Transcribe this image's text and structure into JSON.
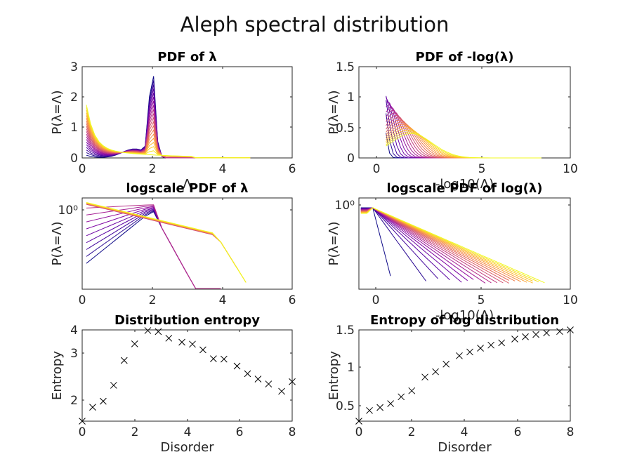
{
  "figure": {
    "title": "Aleph spectral distribution"
  },
  "chart_data": [
    {
      "id": "pdf_lambda",
      "type": "line",
      "title": "PDF of λ",
      "xlabel": "Λ",
      "ylabel": "P(λ=Λ)",
      "xlim": [
        0,
        6
      ],
      "ylim": [
        0,
        3
      ],
      "yscale": "linear",
      "xticks": [
        "0",
        "2",
        "4",
        "6"
      ],
      "yticks": [
        "0",
        "1",
        "2",
        "3"
      ],
      "colormap": "plasma",
      "n_series": 20
    },
    {
      "id": "pdf_neglog",
      "type": "line",
      "title": "PDF of -log(λ)",
      "xlabel": "-log10(Λ)",
      "ylabel": "P(λ=Λ)",
      "xlim": [
        -1.7,
        10
      ],
      "ylim": [
        0,
        1.5
      ],
      "yscale": "linear",
      "xticks": [
        "0",
        "5",
        "10"
      ],
      "yticks": [
        "0",
        "0.5",
        "1",
        "1.5"
      ],
      "colormap": "plasma",
      "n_series": 20
    },
    {
      "id": "logpdf_lambda",
      "type": "line",
      "title": "logscale PDF of λ",
      "xlabel": "",
      "ylabel": "P(λ=Λ)",
      "xlim": [
        0,
        6
      ],
      "yscale": "log",
      "xticks": [
        "0",
        "2",
        "4",
        "6"
      ],
      "yticks": [
        "10⁰"
      ],
      "colormap": "plasma",
      "n_series": 20
    },
    {
      "id": "logpdf_log",
      "type": "line",
      "title": "logscale PDF of log(λ)",
      "xlabel": "-log10(Λ)",
      "ylabel": "P(λ=Λ)",
      "xlim": [
        -0.7,
        10
      ],
      "yscale": "log",
      "xticks": [
        "0",
        "5",
        "10"
      ],
      "yticks": [
        "10⁰"
      ],
      "colormap": "plasma",
      "n_series": 20
    },
    {
      "id": "entropy",
      "type": "scatter",
      "marker": "x",
      "title": "Distribution entropy",
      "xlabel": "Disorder",
      "ylabel": "Entropy",
      "xlim": [
        0,
        8
      ],
      "ylim": [
        1.3,
        4.05
      ],
      "xticks": [
        "0",
        "2",
        "4",
        "6",
        "8"
      ],
      "yticks": [
        "2",
        "3",
        "4"
      ],
      "x": [
        0,
        0.4,
        0.8,
        1.2,
        1.6,
        2.0,
        2.5,
        2.9,
        3.3,
        3.8,
        4.2,
        4.6,
        5.0,
        5.4,
        5.9,
        6.3,
        6.7,
        7.1,
        7.6,
        8.0
      ],
      "y": [
        1.3,
        1.72,
        1.9,
        2.38,
        3.13,
        3.63,
        4.03,
        4.0,
        3.8,
        3.68,
        3.62,
        3.45,
        3.18,
        3.17,
        2.96,
        2.73,
        2.57,
        2.42,
        2.2,
        2.49
      ]
    },
    {
      "id": "entropy_log",
      "type": "scatter",
      "marker": "x",
      "title": "Entropy of log distribution",
      "xlabel": "Disorder",
      "ylabel": "Entropy",
      "xlim": [
        0,
        8
      ],
      "ylim": [
        0.3,
        1.5
      ],
      "xticks": [
        "0",
        "2",
        "4",
        "6",
        "8"
      ],
      "yticks": [
        "0.5",
        "1",
        "1.5"
      ],
      "x": [
        0,
        0.4,
        0.8,
        1.2,
        1.6,
        2.0,
        2.5,
        2.9,
        3.3,
        3.8,
        4.2,
        4.6,
        5.0,
        5.4,
        5.9,
        6.3,
        6.7,
        7.1,
        7.6,
        8.0
      ],
      "y": [
        0.3,
        0.44,
        0.48,
        0.53,
        0.62,
        0.7,
        0.88,
        0.95,
        1.05,
        1.16,
        1.21,
        1.26,
        1.3,
        1.33,
        1.38,
        1.41,
        1.44,
        1.46,
        1.48,
        1.5
      ]
    }
  ]
}
